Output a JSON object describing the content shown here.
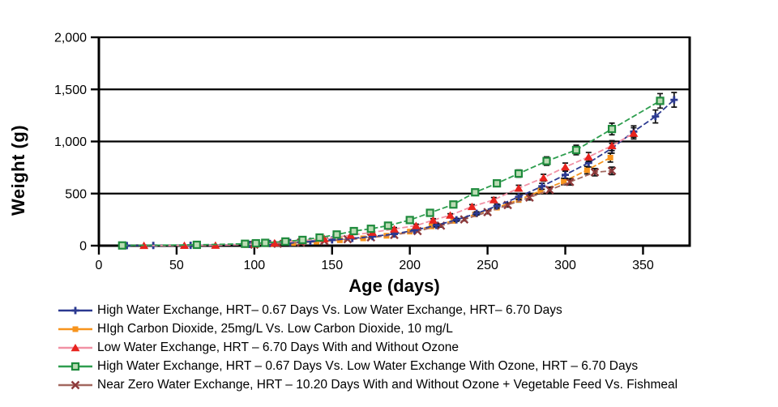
{
  "chart_data": {
    "type": "line",
    "title": "",
    "xlabel": "Age (days)",
    "ylabel": "Weight (g)",
    "xlim": [
      0,
      380
    ],
    "ylim": [
      0,
      2000
    ],
    "xticks": [
      0,
      50,
      100,
      150,
      200,
      250,
      300,
      350
    ],
    "yticks": [
      0,
      500,
      1000,
      1500,
      2000
    ],
    "ytick_labels": [
      "0",
      "500",
      "1,000",
      "1,500",
      "2,000"
    ],
    "grid": "horizontal-black",
    "legend_position": "below",
    "background": "#ffffff",
    "axis_color": "#000000",
    "error_bars": {
      "min_weight": 150,
      "fraction": 0.05,
      "min_size": 14,
      "color": "#111111"
    },
    "series": [
      {
        "name": "high-vs-low-water-exchange",
        "label": "High Water Exchange, HRT– 0.67 Days Vs. Low Water Exchange, HRT– 6.70 Days",
        "line_color": "#2B3990",
        "marker_color": "#2B3990",
        "marker": "plus",
        "points": [
          [
            18,
            1
          ],
          [
            35,
            2
          ],
          [
            59,
            3
          ],
          [
            97,
            12
          ],
          [
            110,
            20
          ],
          [
            123,
            30
          ],
          [
            136,
            42
          ],
          [
            150,
            55
          ],
          [
            163,
            70
          ],
          [
            176,
            88
          ],
          [
            190,
            112
          ],
          [
            203,
            148
          ],
          [
            217,
            195
          ],
          [
            230,
            248
          ],
          [
            243,
            310
          ],
          [
            256,
            380
          ],
          [
            270,
            468
          ],
          [
            285,
            570
          ],
          [
            300,
            680
          ],
          [
            315,
            795
          ],
          [
            330,
            935
          ],
          [
            344,
            1095
          ],
          [
            358,
            1240
          ],
          [
            370,
            1400
          ]
        ]
      },
      {
        "name": "carbon-dioxide",
        "label": "HIgh Carbon Dioxide, 25mg/L Vs. Low Carbon Dioxide, 10 mg/L",
        "line_color": "#F7941D",
        "marker_color": "#F7941D",
        "marker": "square",
        "points": [
          [
            95,
            6
          ],
          [
            110,
            14
          ],
          [
            125,
            25
          ],
          [
            140,
            38
          ],
          [
            155,
            52
          ],
          [
            170,
            70
          ],
          [
            185,
            95
          ],
          [
            200,
            135
          ],
          [
            214,
            185
          ],
          [
            228,
            238
          ],
          [
            242,
            300
          ],
          [
            256,
            365
          ],
          [
            270,
            440
          ],
          [
            284,
            525
          ],
          [
            299,
            615
          ],
          [
            314,
            725
          ],
          [
            329,
            845
          ]
        ]
      },
      {
        "name": "low-water-exchange-ozone",
        "label": "Low Water Exchange, HRT – 6.70 Days With and Without Ozone",
        "line_color": "#F191A5",
        "marker_color": "#E8231E",
        "marker": "triangle",
        "points": [
          [
            29,
            1
          ],
          [
            55,
            2
          ],
          [
            75,
            3
          ],
          [
            100,
            14
          ],
          [
            113,
            25
          ],
          [
            131,
            48
          ],
          [
            145,
            66
          ],
          [
            162,
            100
          ],
          [
            176,
            128
          ],
          [
            190,
            160
          ],
          [
            204,
            192
          ],
          [
            215,
            245
          ],
          [
            226,
            292
          ],
          [
            240,
            375
          ],
          [
            254,
            440
          ],
          [
            270,
            552
          ],
          [
            286,
            652
          ],
          [
            300,
            755
          ],
          [
            315,
            852
          ],
          [
            330,
            960
          ],
          [
            344,
            1078
          ]
        ]
      },
      {
        "name": "high-vs-low-with-ozone",
        "label": "High Water Exchange, HRT – 0.67 Days Vs. Low Water Exchange With Ozone, HRT – 6.70 Days",
        "line_color": "#2E9E4F",
        "marker_color": "#1F8B3D",
        "marker_fill": "#BBDCB4",
        "marker": "square-open",
        "points": [
          [
            15,
            2
          ],
          [
            63,
            8
          ],
          [
            94,
            18
          ],
          [
            101,
            23
          ],
          [
            107,
            27
          ],
          [
            120,
            40
          ],
          [
            131,
            55
          ],
          [
            142,
            78
          ],
          [
            153,
            107
          ],
          [
            164,
            140
          ],
          [
            175,
            162
          ],
          [
            186,
            192
          ],
          [
            200,
            246
          ],
          [
            213,
            315
          ],
          [
            228,
            395
          ],
          [
            242,
            512
          ],
          [
            256,
            598
          ],
          [
            270,
            692
          ],
          [
            288,
            812
          ],
          [
            307,
            918
          ],
          [
            330,
            1120
          ],
          [
            361,
            1390
          ]
        ]
      },
      {
        "name": "near-zero-water-exchange",
        "label": "Near Zero Water Exchange, HRT – 10.20 Days With and Without Ozone + Vegetable Feed Vs. Fishmeal",
        "line_color": "#A3685F",
        "marker_color": "#8E3A3C",
        "marker": "x",
        "points": [
          [
            100,
            10
          ],
          [
            115,
            18
          ],
          [
            130,
            30
          ],
          [
            145,
            45
          ],
          [
            160,
            62
          ],
          [
            175,
            80
          ],
          [
            190,
            103
          ],
          [
            205,
            140
          ],
          [
            220,
            192
          ],
          [
            235,
            252
          ],
          [
            250,
            322
          ],
          [
            263,
            390
          ],
          [
            277,
            462
          ],
          [
            290,
            535
          ],
          [
            303,
            612
          ],
          [
            319,
            705
          ],
          [
            330,
            718
          ]
        ]
      }
    ]
  }
}
